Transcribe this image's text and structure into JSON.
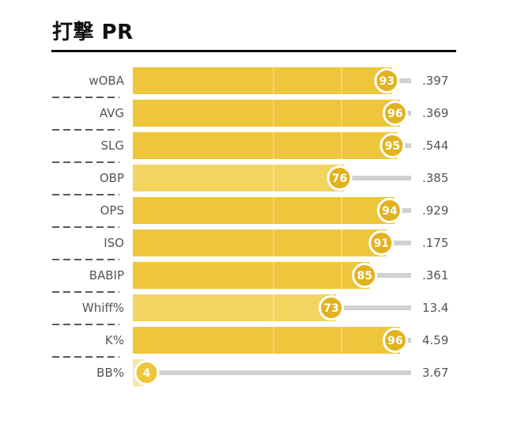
{
  "title": "打撃 PR",
  "colors": {
    "bar_strong": "#eec63b",
    "bar_mid": "#f2d460",
    "bar_light": "#f7e6a6",
    "track": "#d0d0d0",
    "circle_fill": "#e2b21f",
    "circle_stroke": "#ffffff",
    "text": "#555555",
    "title_rule": "#111111"
  },
  "chart_data": {
    "type": "bar",
    "title": "打撃 PR",
    "xlim": [
      0,
      100
    ],
    "categories": [
      "wOBA",
      "AVG",
      "SLG",
      "OBP",
      "OPS",
      "ISO",
      "BABIP",
      "Whiff%",
      "K%",
      "BB%"
    ],
    "series": [
      {
        "values": [
          93,
          96,
          95,
          76,
          94,
          91,
          85,
          73,
          96,
          4
        ]
      }
    ],
    "stat_values": [
      ".397",
      ".369",
      ".544",
      ".385",
      ".929",
      ".175",
      ".361",
      "13.4",
      "4.59",
      "3.67"
    ],
    "percentile_labels": [
      "93",
      "96",
      "95",
      "76",
      "94",
      "91",
      "85",
      "73",
      "96",
      "4"
    ],
    "grid": true
  }
}
